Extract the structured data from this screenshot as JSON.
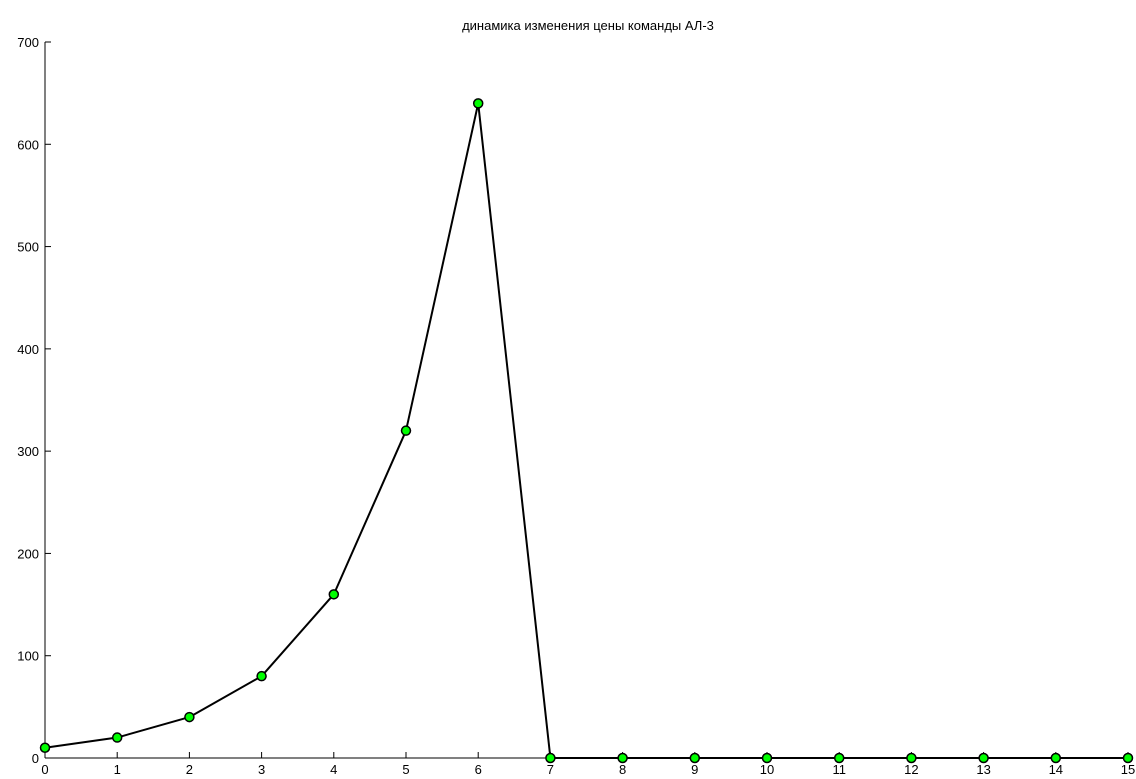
{
  "chart_data": {
    "type": "line",
    "title": "динамика изменения цены команды АЛ-3",
    "xlabel": "",
    "ylabel": "",
    "x": [
      0,
      1,
      2,
      3,
      4,
      5,
      6,
      7,
      8,
      9,
      10,
      11,
      12,
      13,
      14,
      15
    ],
    "series": [
      {
        "values": [
          10,
          20,
          40,
          80,
          160,
          320,
          640,
          0,
          0,
          0,
          0,
          0,
          0,
          0,
          0,
          0
        ]
      }
    ],
    "xlim": [
      0,
      15
    ],
    "ylim": [
      0,
      700
    ],
    "x_ticks": [
      "0",
      "1",
      "2",
      "3",
      "4",
      "5",
      "6",
      "7",
      "8",
      "9",
      "10",
      "11",
      "12",
      "13",
      "14",
      "15"
    ],
    "y_ticks": [
      "0",
      "100",
      "200",
      "300",
      "400",
      "500",
      "600",
      "700"
    ],
    "grid": false,
    "line_color": "#000000",
    "marker_fill": "#00ff00",
    "marker_edge": "#000000"
  }
}
